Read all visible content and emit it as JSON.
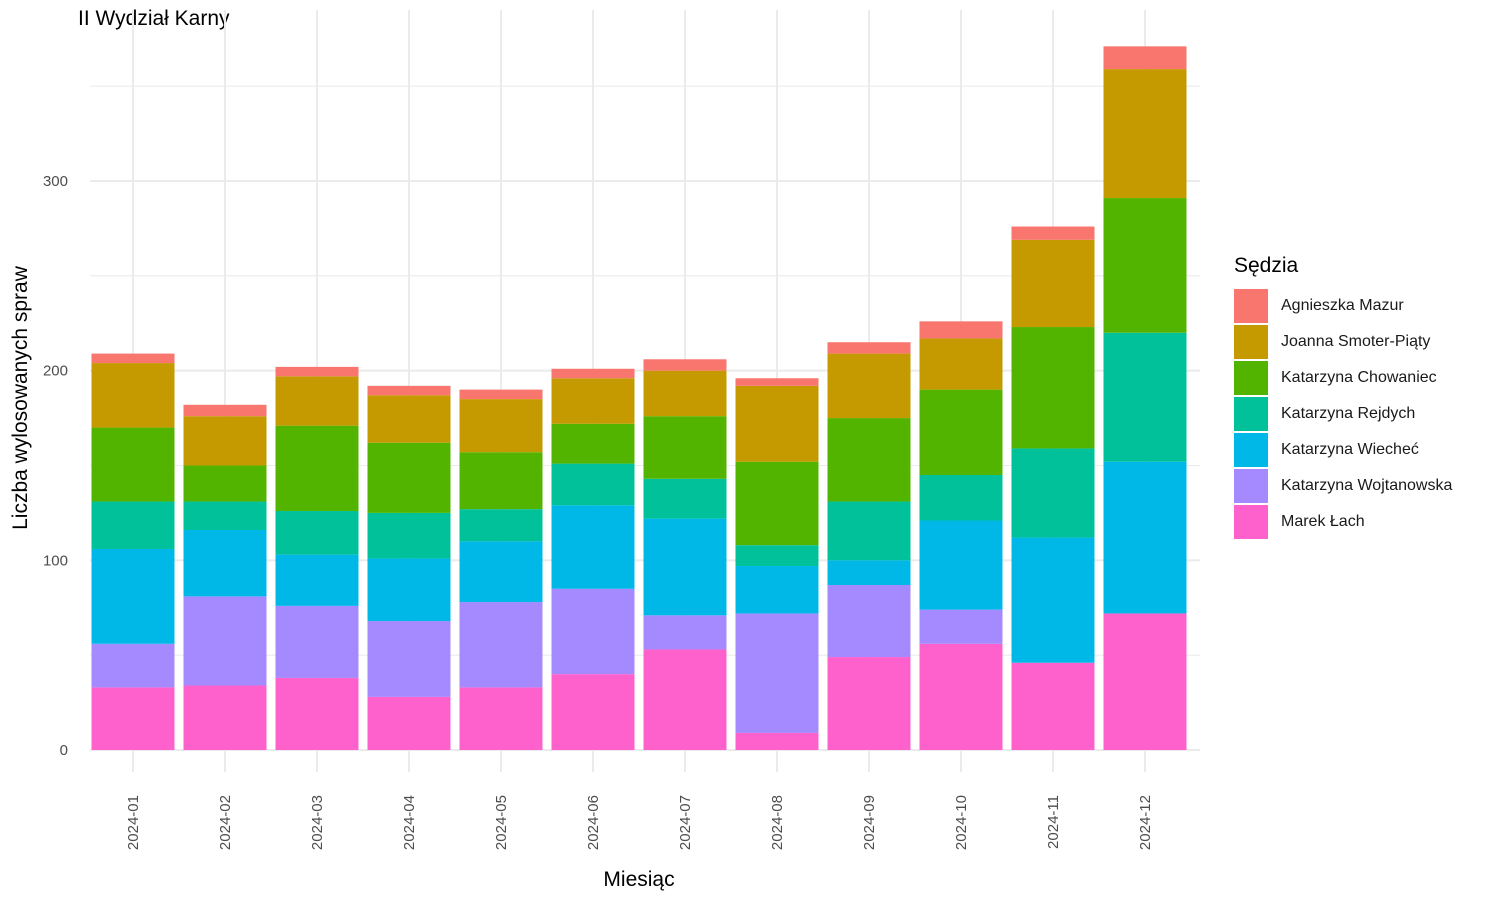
{
  "chart_data": {
    "type": "bar",
    "stacked": true,
    "title": "II Wydział Karny",
    "xlabel": "Miesiąc",
    "ylabel": "Liczba wylosowanych spraw",
    "ylim": [
      0,
      380
    ],
    "yticks": [
      0,
      100,
      200,
      300
    ],
    "grid": true,
    "legend_title": "Sędzia",
    "legend_position": "right",
    "categories": [
      "2024-01",
      "2024-02",
      "2024-03",
      "2024-04",
      "2024-05",
      "2024-06",
      "2024-07",
      "2024-08",
      "2024-09",
      "2024-10",
      "2024-11",
      "2024-12"
    ],
    "series": [
      {
        "name": "Marek Łach",
        "color": "#FF61CC",
        "values": [
          33,
          34,
          38,
          28,
          33,
          40,
          53,
          9,
          49,
          56,
          46,
          72
        ]
      },
      {
        "name": "Katarzyna Wojtanowska",
        "color": "#A58AFF",
        "values": [
          23,
          47,
          38,
          40,
          45,
          45,
          18,
          63,
          38,
          18,
          0,
          0
        ]
      },
      {
        "name": "Katarzyna Wiecheć",
        "color": "#00B8E7",
        "values": [
          50,
          35,
          27,
          33,
          32,
          44,
          51,
          25,
          13,
          47,
          66,
          80
        ]
      },
      {
        "name": "Katarzyna Rejdych",
        "color": "#00C19A",
        "values": [
          25,
          15,
          23,
          24,
          17,
          22,
          21,
          11,
          31,
          24,
          47,
          68
        ]
      },
      {
        "name": "Katarzyna Chowaniec",
        "color": "#53B400",
        "values": [
          39,
          19,
          45,
          37,
          30,
          21,
          33,
          44,
          44,
          45,
          64,
          71
        ]
      },
      {
        "name": "Joanna Smoter-Piąty",
        "color": "#C49A00",
        "values": [
          34,
          26,
          26,
          25,
          28,
          24,
          24,
          40,
          34,
          27,
          46,
          68
        ]
      },
      {
        "name": "Agnieszka Mazur",
        "color": "#F8766D",
        "values": [
          5,
          6,
          5,
          5,
          5,
          5,
          6,
          4,
          6,
          9,
          7,
          12
        ]
      }
    ]
  }
}
